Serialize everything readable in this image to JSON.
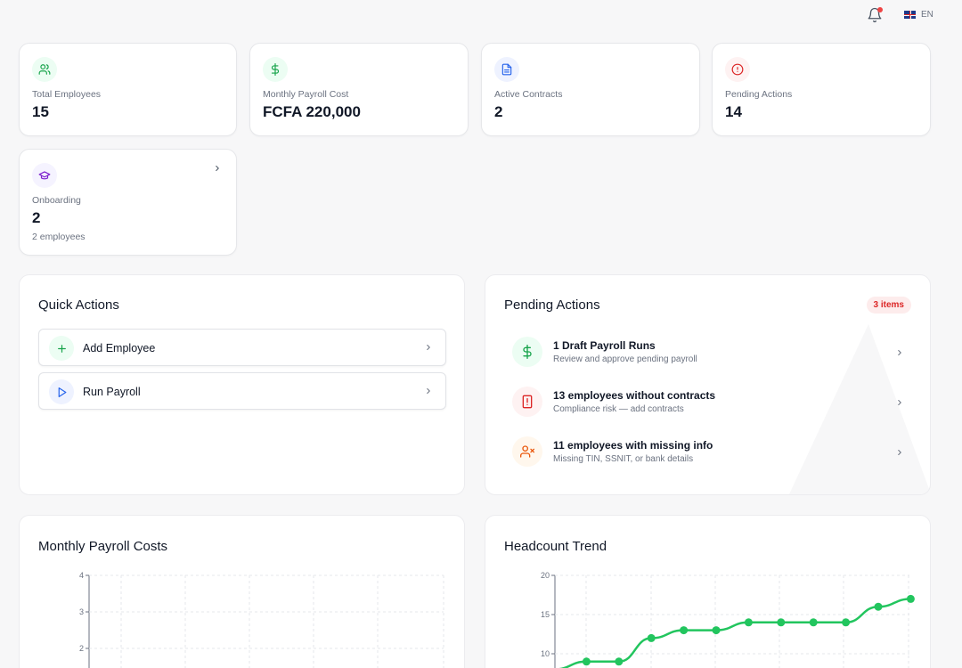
{
  "header": {
    "language": "EN",
    "notification_indicator": true,
    "icons": {
      "bell": "bell-icon",
      "flag": "uk-flag-icon"
    }
  },
  "stats": [
    {
      "label": "Total Employees",
      "value": "15",
      "icon": "users-icon",
      "icon_color": "#16a34a",
      "icon_bg": "#ecfdf3"
    },
    {
      "label": "Monthly Payroll Cost",
      "value": "FCFA 220,000",
      "icon": "dollar-icon",
      "icon_color": "#16a34a",
      "icon_bg": "#ecfdf3"
    },
    {
      "label": "Active Contracts",
      "value": "2",
      "icon": "document-icon",
      "icon_color": "#2563eb",
      "icon_bg": "#eef2ff"
    },
    {
      "label": "Pending Actions",
      "value": "14",
      "icon": "alert-circle-icon",
      "icon_color": "#dc2626",
      "icon_bg": "#fef2f2"
    },
    {
      "label": "Onboarding",
      "value": "2",
      "sub": "2 employees",
      "icon": "graduation-cap-icon",
      "icon_color": "#7e22ce",
      "icon_bg": "#f5f3ff"
    }
  ],
  "quick_actions": {
    "title": "Quick Actions",
    "items": [
      {
        "label": "Add Employee",
        "icon": "plus-icon",
        "icon_color": "#16a34a",
        "icon_bg": "#ecfdf3"
      },
      {
        "label": "Run Payroll",
        "icon": "play-icon",
        "icon_color": "#2563eb",
        "icon_bg": "#eef2ff"
      }
    ]
  },
  "pending_actions": {
    "title": "Pending Actions",
    "badge": "3 items",
    "items": [
      {
        "title": "1 Draft Payroll Runs",
        "desc": "Review and approve pending payroll",
        "icon": "dollar-icon",
        "icon_color": "#16a34a",
        "icon_bg": "#ecfdf3"
      },
      {
        "title": "13 employees without contracts",
        "desc": "Compliance risk — add contracts",
        "icon": "file-alert-icon",
        "icon_color": "#dc2626",
        "icon_bg": "#fef2f2"
      },
      {
        "title": "11 employees with missing info",
        "desc": "Missing TIN, SSNIT, or bank details",
        "icon": "user-x-icon",
        "icon_color": "#ea580c",
        "icon_bg": "#fff7ed"
      }
    ]
  },
  "charts": {
    "payroll_title": "Monthly Payroll Costs",
    "headcount_title": "Headcount Trend"
  },
  "chart_data": [
    {
      "type": "bar",
      "title": "Monthly Payroll Costs",
      "ylim": [
        0,
        4
      ],
      "yticks": [
        "4",
        "3",
        "2"
      ],
      "grid": true,
      "values": []
    },
    {
      "type": "line",
      "title": "Headcount Trend",
      "ylim": [
        0,
        20
      ],
      "yticks": [
        "20",
        "15",
        "10"
      ],
      "grid": true,
      "color": "#22c55e",
      "values": [
        8,
        9,
        9,
        12,
        13,
        13,
        14,
        14,
        14,
        14,
        16,
        17
      ]
    }
  ]
}
